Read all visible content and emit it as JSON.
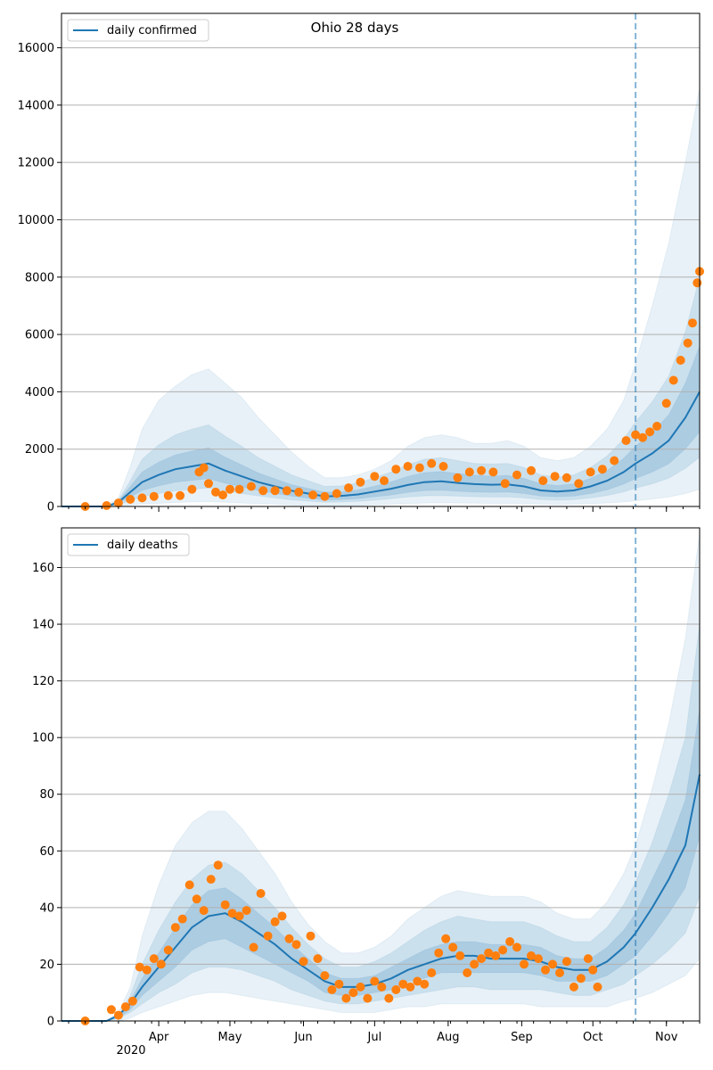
{
  "figure": {
    "title": "Ohio 28 days"
  },
  "colors": {
    "model": "#1f77b4",
    "observed": "#ff7f0e",
    "grid": "#b0b0b0",
    "band": "#1f77b4"
  },
  "chart_data": [
    {
      "type": "line",
      "title": "Ohio 28 days",
      "legend": {
        "entries": [
          "daily confirmed"
        ],
        "placement": "top-left"
      },
      "x_axis": {
        "type": "date",
        "range": [
          "2020-02-20",
          "2020-11-15"
        ],
        "tick_labels": [
          "Apr",
          "May",
          "Jun",
          "Jul",
          "Aug",
          "Sep",
          "Oct",
          "Nov"
        ],
        "year_label": "2020",
        "vline": "2020-10-19"
      },
      "ylim": [
        0,
        17200
      ],
      "yticks": [
        0,
        2000,
        4000,
        6000,
        8000,
        10000,
        12000,
        14000,
        16000
      ],
      "grid": "horizontal",
      "model_median": {
        "name": "daily confirmed",
        "x": [
          "2020-02-20",
          "2020-03-05",
          "2020-03-10",
          "2020-03-15",
          "2020-03-20",
          "2020-03-25",
          "2020-04-01",
          "2020-04-08",
          "2020-04-15",
          "2020-04-22",
          "2020-04-29",
          "2020-05-06",
          "2020-05-13",
          "2020-05-20",
          "2020-05-27",
          "2020-06-03",
          "2020-06-10",
          "2020-06-17",
          "2020-06-24",
          "2020-07-01",
          "2020-07-08",
          "2020-07-15",
          "2020-07-22",
          "2020-07-29",
          "2020-08-05",
          "2020-08-12",
          "2020-08-19",
          "2020-08-26",
          "2020-09-02",
          "2020-09-09",
          "2020-09-16",
          "2020-09-23",
          "2020-09-30",
          "2020-10-07",
          "2020-10-14",
          "2020-10-19",
          "2020-10-26",
          "2020-11-02",
          "2020-11-09",
          "2020-11-15"
        ],
        "y": [
          0,
          0,
          0,
          150,
          500,
          850,
          1100,
          1300,
          1400,
          1500,
          1250,
          1050,
          850,
          700,
          550,
          450,
          350,
          370,
          420,
          520,
          620,
          750,
          850,
          880,
          820,
          780,
          760,
          770,
          700,
          560,
          520,
          560,
          700,
          900,
          1200,
          1500,
          1850,
          2300,
          3100,
          4000
        ]
      },
      "bands": [
        {
          "level": "outer",
          "x_ref": "model_median.x",
          "lower": [
            0,
            0,
            0,
            20,
            50,
            90,
            110,
            140,
            160,
            170,
            150,
            120,
            100,
            80,
            60,
            50,
            40,
            40,
            45,
            60,
            80,
            100,
            120,
            130,
            120,
            115,
            110,
            112,
            100,
            80,
            75,
            80,
            100,
            120,
            160,
            200,
            260,
            330,
            450,
            600
          ],
          "upper": [
            0,
            0,
            0,
            300,
            1400,
            2700,
            3700,
            4200,
            4600,
            4800,
            4300,
            3800,
            3100,
            2500,
            1900,
            1400,
            1000,
            1000,
            1100,
            1300,
            1600,
            2100,
            2400,
            2500,
            2400,
            2200,
            2200,
            2300,
            2100,
            1700,
            1600,
            1700,
            2100,
            2700,
            3700,
            5000,
            7000,
            9200,
            12000,
            14600
          ]
        },
        {
          "level": "middle",
          "x_ref": "model_median.x",
          "lower": [
            0,
            0,
            0,
            60,
            200,
            350,
            450,
            550,
            600,
            650,
            550,
            450,
            370,
            300,
            230,
            190,
            150,
            155,
            180,
            220,
            270,
            330,
            370,
            380,
            360,
            340,
            330,
            335,
            300,
            240,
            220,
            240,
            300,
            380,
            510,
            640,
            790,
            990,
            1330,
            1720
          ],
          "upper": [
            0,
            0,
            0,
            220,
            900,
            1650,
            2150,
            2500,
            2700,
            2850,
            2450,
            2100,
            1700,
            1400,
            1100,
            900,
            700,
            720,
            820,
            1000,
            1200,
            1450,
            1650,
            1700,
            1600,
            1500,
            1480,
            1500,
            1360,
            1100,
            1020,
            1100,
            1360,
            1760,
            2350,
            2950,
            3650,
            4550,
            6100,
            8000
          ]
        },
        {
          "level": "inner",
          "x_ref": "model_median.x",
          "lower": [
            0,
            0,
            0,
            100,
            330,
            560,
            720,
            850,
            910,
            970,
            810,
            680,
            550,
            450,
            360,
            290,
            225,
            240,
            270,
            340,
            400,
            490,
            550,
            570,
            530,
            500,
            490,
            500,
            450,
            360,
            340,
            360,
            450,
            580,
            780,
            970,
            1200,
            1490,
            2010,
            2600
          ],
          "upper": [
            0,
            0,
            0,
            190,
            700,
            1200,
            1550,
            1800,
            1930,
            2050,
            1720,
            1450,
            1170,
            960,
            760,
            630,
            500,
            510,
            580,
            710,
            860,
            1050,
            1180,
            1220,
            1150,
            1090,
            1060,
            1080,
            980,
            790,
            730,
            790,
            980,
            1250,
            1680,
            2100,
            2580,
            3200,
            4300,
            5600
          ]
        }
      ],
      "observed": {
        "name": "observed",
        "x": [
          "2020-03-01",
          "2020-03-10",
          "2020-03-15",
          "2020-03-20",
          "2020-03-25",
          "2020-03-30",
          "2020-04-05",
          "2020-04-10",
          "2020-04-15",
          "2020-04-18",
          "2020-04-20",
          "2020-04-22",
          "2020-04-25",
          "2020-04-28",
          "2020-05-01",
          "2020-05-05",
          "2020-05-10",
          "2020-05-15",
          "2020-05-20",
          "2020-05-25",
          "2020-05-30",
          "2020-06-05",
          "2020-06-10",
          "2020-06-15",
          "2020-06-20",
          "2020-06-25",
          "2020-07-01",
          "2020-07-05",
          "2020-07-10",
          "2020-07-15",
          "2020-07-20",
          "2020-07-25",
          "2020-07-30",
          "2020-08-05",
          "2020-08-10",
          "2020-08-15",
          "2020-08-20",
          "2020-08-25",
          "2020-08-30",
          "2020-09-05",
          "2020-09-10",
          "2020-09-15",
          "2020-09-20",
          "2020-09-25",
          "2020-09-30",
          "2020-10-05",
          "2020-10-10",
          "2020-10-15",
          "2020-10-19",
          "2020-10-22",
          "2020-10-25",
          "2020-10-28",
          "2020-11-01",
          "2020-11-04",
          "2020-11-07",
          "2020-11-10",
          "2020-11-12",
          "2020-11-14",
          "2020-11-15"
        ],
        "y": [
          0,
          30,
          120,
          250,
          300,
          350,
          380,
          380,
          600,
          1200,
          1350,
          800,
          500,
          400,
          600,
          600,
          700,
          550,
          550,
          550,
          500,
          400,
          350,
          450,
          650,
          850,
          1050,
          900,
          1300,
          1400,
          1350,
          1500,
          1400,
          1000,
          1200,
          1250,
          1200,
          800,
          1100,
          1250,
          900,
          1050,
          1000,
          800,
          1200,
          1300,
          1600,
          2300,
          2500,
          2400,
          2600,
          2800,
          3600,
          4400,
          5100,
          5700,
          6400,
          7800,
          8200
        ]
      }
    },
    {
      "type": "line",
      "legend": {
        "entries": [
          "daily deaths"
        ],
        "placement": "top-left"
      },
      "x_axis": {
        "type": "date",
        "range": [
          "2020-02-20",
          "2020-11-15"
        ],
        "tick_labels": [
          "Apr",
          "May",
          "Jun",
          "Jul",
          "Aug",
          "Sep",
          "Oct",
          "Nov"
        ],
        "year_label": "2020",
        "vline": "2020-10-19"
      },
      "ylim": [
        0,
        174
      ],
      "yticks": [
        0,
        20,
        40,
        60,
        80,
        100,
        120,
        140,
        160
      ],
      "grid": "horizontal",
      "model_median": {
        "name": "daily deaths",
        "x": [
          "2020-02-20",
          "2020-03-10",
          "2020-03-15",
          "2020-03-20",
          "2020-03-25",
          "2020-04-01",
          "2020-04-08",
          "2020-04-15",
          "2020-04-22",
          "2020-04-29",
          "2020-05-06",
          "2020-05-13",
          "2020-05-20",
          "2020-05-27",
          "2020-06-03",
          "2020-06-10",
          "2020-06-17",
          "2020-06-24",
          "2020-07-01",
          "2020-07-08",
          "2020-07-15",
          "2020-07-22",
          "2020-07-29",
          "2020-08-05",
          "2020-08-12",
          "2020-08-19",
          "2020-08-26",
          "2020-09-02",
          "2020-09-09",
          "2020-09-16",
          "2020-09-23",
          "2020-09-30",
          "2020-10-07",
          "2020-10-14",
          "2020-10-19",
          "2020-10-26",
          "2020-11-02",
          "2020-11-09",
          "2020-11-15"
        ],
        "y": [
          0,
          0,
          2,
          6,
          12,
          19,
          26,
          33,
          37,
          38,
          35,
          31,
          27,
          22,
          18,
          14,
          12,
          12,
          13,
          15,
          18,
          20,
          22,
          23,
          23,
          22,
          22,
          22,
          21,
          19,
          18,
          18,
          21,
          26,
          31,
          40,
          50,
          62,
          87
        ]
      },
      "bands": [
        {
          "level": "outer",
          "x_ref": "model_median.x",
          "lower": [
            0,
            0,
            0,
            1,
            3,
            5,
            7,
            9,
            10,
            10,
            9,
            8,
            7,
            6,
            5,
            4,
            3,
            3,
            3,
            4,
            5,
            5,
            6,
            6,
            6,
            6,
            6,
            6,
            5,
            5,
            5,
            5,
            5,
            7,
            8,
            10,
            13,
            16,
            22
          ],
          "upper": [
            0,
            0,
            3,
            12,
            30,
            48,
            62,
            70,
            74,
            74,
            68,
            60,
            52,
            42,
            34,
            28,
            24,
            24,
            26,
            30,
            36,
            40,
            44,
            46,
            45,
            44,
            44,
            44,
            42,
            38,
            36,
            36,
            42,
            52,
            62,
            82,
            105,
            135,
            172
          ]
        },
        {
          "level": "middle",
          "x_ref": "model_median.x",
          "lower": [
            0,
            0,
            1,
            3,
            6,
            10,
            13,
            17,
            19,
            19,
            18,
            16,
            14,
            11,
            9,
            7,
            6,
            6,
            7,
            8,
            9,
            10,
            11,
            12,
            12,
            11,
            11,
            11,
            11,
            10,
            9,
            9,
            11,
            13,
            16,
            20,
            25,
            31,
            44
          ],
          "upper": [
            0,
            0,
            2,
            9,
            20,
            32,
            42,
            50,
            55,
            56,
            52,
            46,
            40,
            33,
            27,
            22,
            19,
            19,
            21,
            24,
            28,
            32,
            35,
            37,
            36,
            35,
            35,
            35,
            33,
            30,
            28,
            28,
            33,
            41,
            49,
            63,
            80,
            100,
            140
          ]
        },
        {
          "level": "inner",
          "x_ref": "model_median.x",
          "lower": [
            0,
            0,
            1,
            4,
            9,
            14,
            19,
            25,
            28,
            29,
            26,
            23,
            20,
            17,
            14,
            10,
            9,
            9,
            10,
            11,
            14,
            15,
            17,
            17,
            17,
            17,
            17,
            17,
            16,
            14,
            14,
            14,
            16,
            20,
            23,
            30,
            38,
            47,
            65
          ],
          "upper": [
            0,
            0,
            2,
            7,
            15,
            24,
            33,
            41,
            46,
            47,
            43,
            38,
            33,
            27,
            22,
            17,
            15,
            15,
            16,
            19,
            22,
            25,
            27,
            28,
            28,
            27,
            27,
            27,
            26,
            23,
            22,
            22,
            26,
            32,
            38,
            50,
            62,
            78,
            110
          ]
        }
      ],
      "observed": {
        "name": "observed",
        "x": [
          "2020-03-01",
          "2020-03-12",
          "2020-03-15",
          "2020-03-18",
          "2020-03-21",
          "2020-03-24",
          "2020-03-27",
          "2020-03-30",
          "2020-04-02",
          "2020-04-05",
          "2020-04-08",
          "2020-04-11",
          "2020-04-14",
          "2020-04-17",
          "2020-04-20",
          "2020-04-23",
          "2020-04-26",
          "2020-04-29",
          "2020-05-02",
          "2020-05-05",
          "2020-05-08",
          "2020-05-11",
          "2020-05-14",
          "2020-05-17",
          "2020-05-20",
          "2020-05-23",
          "2020-05-26",
          "2020-05-29",
          "2020-06-01",
          "2020-06-04",
          "2020-06-07",
          "2020-06-10",
          "2020-06-13",
          "2020-06-16",
          "2020-06-19",
          "2020-06-22",
          "2020-06-25",
          "2020-06-28",
          "2020-07-01",
          "2020-07-04",
          "2020-07-07",
          "2020-07-10",
          "2020-07-13",
          "2020-07-16",
          "2020-07-19",
          "2020-07-22",
          "2020-07-25",
          "2020-07-28",
          "2020-07-31",
          "2020-08-03",
          "2020-08-06",
          "2020-08-09",
          "2020-08-12",
          "2020-08-15",
          "2020-08-18",
          "2020-08-21",
          "2020-08-24",
          "2020-08-27",
          "2020-08-30",
          "2020-09-02",
          "2020-09-05",
          "2020-09-08",
          "2020-09-11",
          "2020-09-14",
          "2020-09-17",
          "2020-09-20",
          "2020-09-23",
          "2020-09-26",
          "2020-09-29",
          "2020-10-01",
          "2020-10-03"
        ],
        "y": [
          0,
          4,
          2,
          5,
          7,
          19,
          18,
          22,
          20,
          25,
          33,
          36,
          48,
          43,
          39,
          50,
          55,
          41,
          38,
          37,
          39,
          26,
          45,
          30,
          35,
          37,
          29,
          27,
          21,
          30,
          22,
          16,
          11,
          13,
          8,
          10,
          12,
          8,
          14,
          12,
          8,
          11,
          13,
          12,
          14,
          13,
          17,
          24,
          29,
          26,
          23,
          17,
          20,
          22,
          24,
          23,
          25,
          28,
          26,
          20,
          23,
          22,
          18,
          20,
          17,
          21,
          12,
          15,
          22,
          18,
          12
        ]
      }
    }
  ]
}
